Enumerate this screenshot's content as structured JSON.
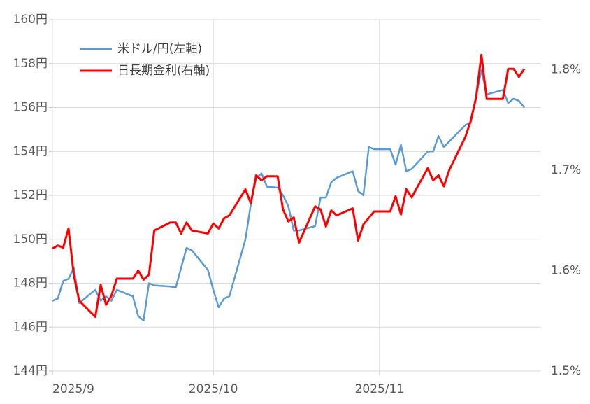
{
  "chart_data": {
    "type": "line",
    "xlim": [
      0,
      91
    ],
    "xticks": [
      {
        "value": 0,
        "label": "2025/9"
      },
      {
        "value": 30,
        "label": "2025/10"
      },
      {
        "value": 61,
        "label": "2025/11"
      }
    ],
    "ylim": [
      144,
      160
    ],
    "yticks": [
      {
        "value": 144,
        "label": "144円"
      },
      {
        "value": 146,
        "label": "146円"
      },
      {
        "value": 148,
        "label": "148円"
      },
      {
        "value": 150,
        "label": "150円"
      },
      {
        "value": 152,
        "label": "152円"
      },
      {
        "value": 154,
        "label": "154円"
      },
      {
        "value": 156,
        "label": "156円"
      },
      {
        "value": 158,
        "label": "158円"
      },
      {
        "value": 160,
        "label": "160円"
      }
    ],
    "y2lim": [
      1.5,
      1.85
    ],
    "y2ticks": [
      {
        "value": 1.5,
        "label": "1.5%"
      },
      {
        "value": 1.6,
        "label": "1.6%"
      },
      {
        "value": 1.7,
        "label": "1.7%"
      },
      {
        "value": 1.8,
        "label": "1.8%"
      }
    ],
    "grid": true,
    "series": [
      {
        "name": "米ドル/円(左軸)",
        "color": "#5b9bd5",
        "x": [
          0,
          1,
          2,
          3,
          4,
          5,
          8,
          9,
          10,
          11,
          12,
          15,
          16,
          17,
          18,
          19,
          22,
          23,
          25,
          26,
          29,
          30,
          31,
          32,
          33,
          36,
          37,
          38,
          39,
          40,
          42,
          43,
          44,
          45,
          46,
          49,
          50,
          51,
          52,
          53,
          56,
          57,
          58,
          59,
          60,
          63,
          64,
          65,
          66,
          67,
          70,
          71,
          72,
          73,
          77,
          78,
          80,
          81,
          84,
          85,
          86,
          87,
          88
        ],
        "values": [
          147.2,
          147.3,
          148.1,
          148.2,
          148.7,
          147.1,
          147.7,
          147.2,
          147.4,
          147.2,
          147.7,
          147.4,
          146.5,
          146.3,
          148.0,
          147.9,
          147.85,
          147.8,
          149.6,
          149.5,
          148.6,
          147.7,
          146.9,
          147.3,
          147.4,
          150.0,
          151.6,
          152.8,
          153.0,
          152.4,
          152.35,
          152.0,
          151.5,
          150.4,
          150.4,
          150.6,
          151.9,
          151.9,
          152.6,
          152.8,
          153.1,
          152.2,
          152.0,
          154.2,
          154.1,
          154.1,
          153.4,
          154.3,
          153.1,
          153.2,
          154.0,
          154.0,
          154.7,
          154.2,
          155.2,
          155.3,
          157.7,
          156.6,
          156.8,
          156.2,
          156.4,
          156.3,
          156.0
        ]
      },
      {
        "name": "日長期金利(右軸)",
        "color": "#ff0000",
        "axis": "y2",
        "x": [
          0,
          1,
          2,
          3,
          4,
          5,
          8,
          9,
          10,
          11,
          12,
          15,
          16,
          17,
          18,
          19,
          22,
          23,
          24,
          25,
          26,
          29,
          30,
          31,
          32,
          33,
          36,
          37,
          38,
          39,
          40,
          42,
          43,
          44,
          45,
          46,
          49,
          50,
          51,
          52,
          53,
          56,
          57,
          58,
          60,
          63,
          64,
          65,
          66,
          67,
          70,
          71,
          72,
          73,
          74,
          77,
          78,
          79,
          80,
          81,
          84,
          85,
          86,
          87,
          88
        ],
        "values": [
          1.622,
          1.625,
          1.623,
          1.642,
          1.595,
          1.57,
          1.554,
          1.586,
          1.566,
          1.575,
          1.592,
          1.592,
          1.6,
          1.591,
          1.596,
          1.64,
          1.648,
          1.648,
          1.637,
          1.648,
          1.64,
          1.637,
          1.647,
          1.642,
          1.652,
          1.655,
          1.681,
          1.667,
          1.695,
          1.69,
          1.694,
          1.694,
          1.661,
          1.649,
          1.653,
          1.628,
          1.664,
          1.661,
          1.644,
          1.66,
          1.655,
          1.662,
          1.63,
          1.646,
          1.659,
          1.659,
          1.674,
          1.656,
          1.681,
          1.673,
          1.702,
          1.69,
          1.695,
          1.684,
          1.7,
          1.733,
          1.749,
          1.772,
          1.815,
          1.771,
          1.771,
          1.801,
          1.801,
          1.793,
          1.801
        ]
      }
    ]
  }
}
